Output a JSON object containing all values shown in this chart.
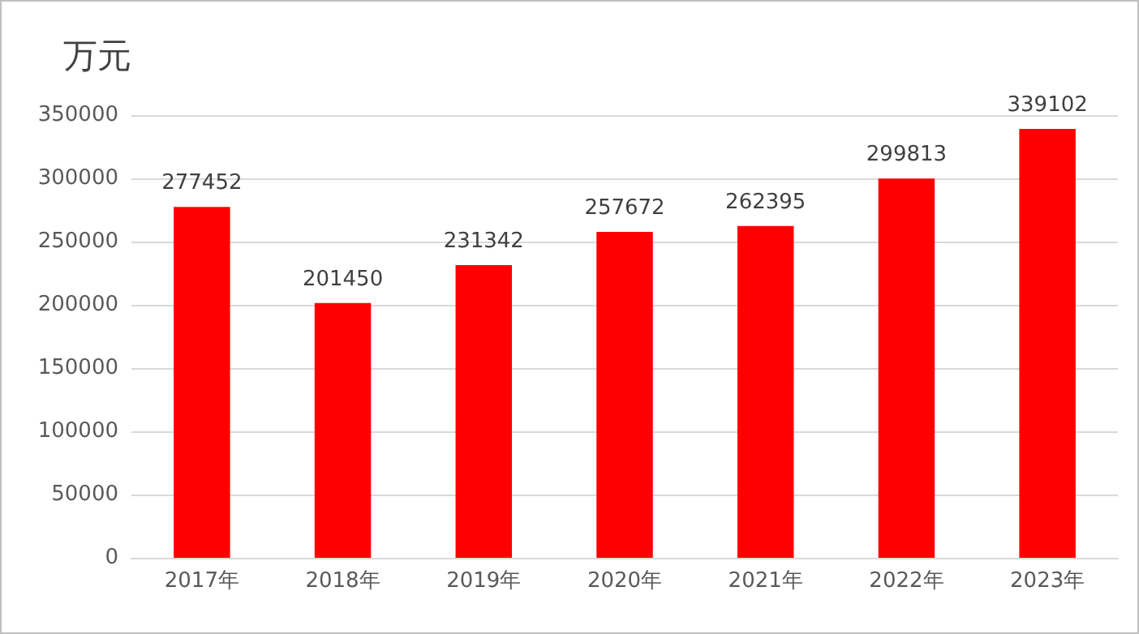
{
  "chart_data": {
    "type": "bar",
    "ylabel": "万元",
    "categories": [
      "2017年",
      "2018年",
      "2019年",
      "2020年",
      "2021年",
      "2022年",
      "2023年"
    ],
    "values": [
      277452,
      201450,
      231342,
      257672,
      262395,
      299813,
      339102
    ],
    "color": "#ff0000",
    "ylim": [
      0,
      350000
    ],
    "yticks": [
      0,
      50000,
      100000,
      150000,
      200000,
      250000,
      300000,
      350000
    ],
    "grid": "y",
    "data_labels": true
  }
}
